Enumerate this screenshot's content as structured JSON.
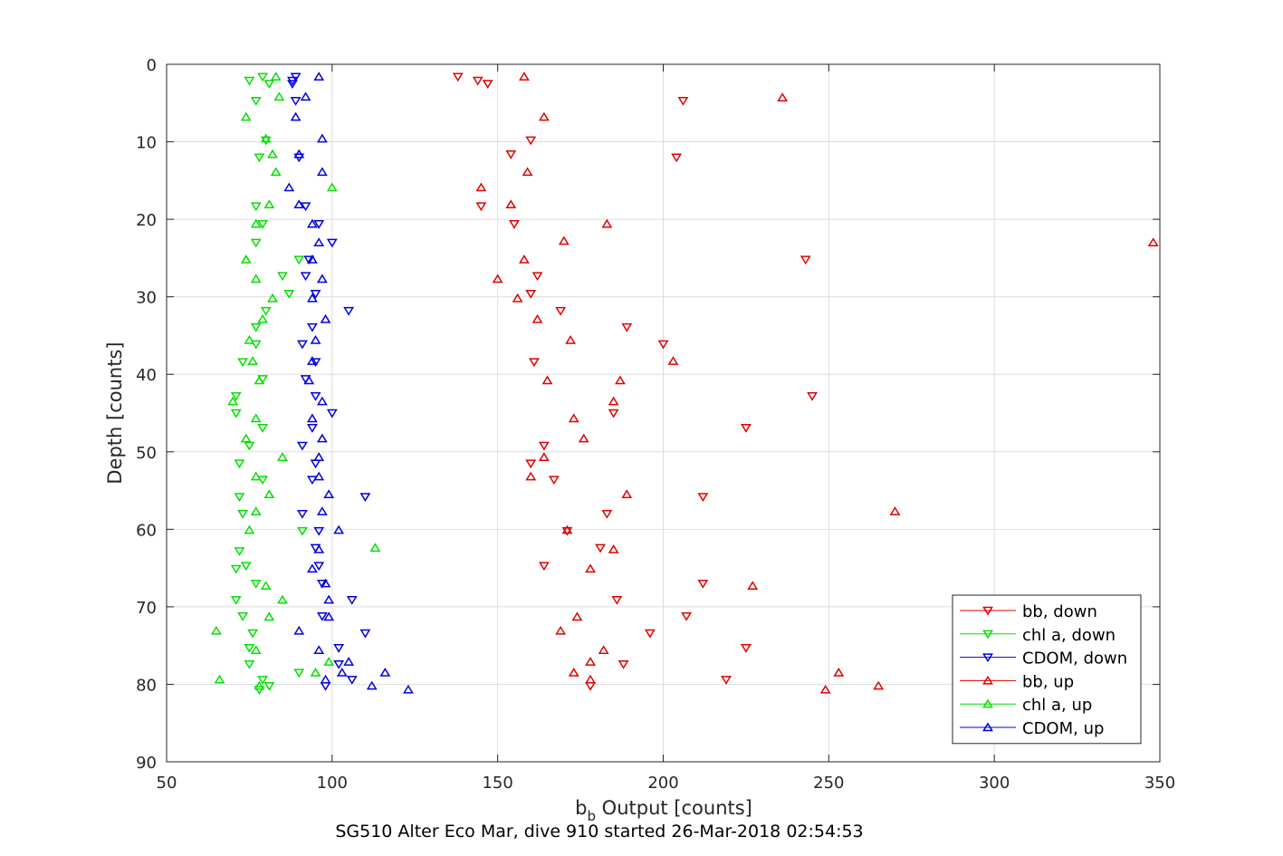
{
  "chart_data": {
    "type": "scatter",
    "title": "",
    "caption": "SG510 Alter Eco Mar, dive 910 started 26-Mar-2018 02:54:53",
    "xlabel_main": "b",
    "xlabel_sub": "b",
    "xlabel_rest": " Output [counts]",
    "ylabel": "Depth [counts]",
    "xlim": [
      50,
      350
    ],
    "ylim": [
      0,
      90
    ],
    "y_reversed": true,
    "grid": true,
    "legend_position": "bottom-right",
    "xticks": [
      "50",
      "100",
      "150",
      "200",
      "250",
      "300",
      "350"
    ],
    "yticks": [
      "0",
      "10",
      "20",
      "30",
      "40",
      "50",
      "60",
      "70",
      "80",
      "90"
    ],
    "series": [
      {
        "name": "bb, down",
        "color": "#e00000",
        "marker": "triangle-down",
        "points": [
          [
            138,
            1.6
          ],
          [
            144,
            2.1
          ],
          [
            147,
            2.5
          ],
          [
            206,
            4.7
          ],
          [
            160,
            9.8
          ],
          [
            204,
            12
          ],
          [
            154,
            11.6
          ],
          [
            145,
            18.3
          ],
          [
            155,
            20.6
          ],
          [
            243,
            25.2
          ],
          [
            162,
            27.3
          ],
          [
            160,
            29.6
          ],
          [
            169,
            31.8
          ],
          [
            189,
            33.9
          ],
          [
            200,
            36.1
          ],
          [
            161,
            38.4
          ],
          [
            245,
            42.8
          ],
          [
            185,
            45
          ],
          [
            225,
            46.9
          ],
          [
            164,
            49.2
          ],
          [
            160,
            51.5
          ],
          [
            167,
            53.6
          ],
          [
            212,
            55.8
          ],
          [
            183,
            58
          ],
          [
            171,
            60.2
          ],
          [
            181,
            62.4
          ],
          [
            164,
            64.7
          ],
          [
            212,
            67
          ],
          [
            186,
            69.1
          ],
          [
            207,
            71.2
          ],
          [
            196,
            73.4
          ],
          [
            225,
            75.3
          ],
          [
            188,
            77.4
          ],
          [
            219,
            79.4
          ],
          [
            178,
            80.2
          ]
        ]
      },
      {
        "name": "chl a, down",
        "color": "#00e000",
        "marker": "triangle-down",
        "points": [
          [
            79,
            1.6
          ],
          [
            75,
            2.1
          ],
          [
            81,
            2.5
          ],
          [
            77,
            4.7
          ],
          [
            80,
            9.8
          ],
          [
            78,
            12
          ],
          [
            77,
            18.3
          ],
          [
            79,
            20.6
          ],
          [
            77,
            23
          ],
          [
            90,
            25.2
          ],
          [
            85,
            27.3
          ],
          [
            87,
            29.6
          ],
          [
            80,
            31.8
          ],
          [
            77,
            33.9
          ],
          [
            77,
            36.1
          ],
          [
            73,
            38.4
          ],
          [
            79,
            40.6
          ],
          [
            71,
            42.8
          ],
          [
            71,
            45
          ],
          [
            79,
            46.9
          ],
          [
            75,
            49.2
          ],
          [
            72,
            51.5
          ],
          [
            79,
            53.6
          ],
          [
            72,
            55.8
          ],
          [
            73,
            58
          ],
          [
            91,
            60.2
          ],
          [
            72,
            62.8
          ],
          [
            74,
            64.7
          ],
          [
            71,
            65.1
          ],
          [
            77,
            67
          ],
          [
            71,
            69.1
          ],
          [
            73,
            71.2
          ],
          [
            76,
            73.4
          ],
          [
            75,
            75.3
          ],
          [
            75,
            77.4
          ],
          [
            90,
            78.5
          ],
          [
            79,
            79.4
          ],
          [
            81,
            80.2
          ],
          [
            78,
            80.7
          ]
        ]
      },
      {
        "name": "CDOM, down",
        "color": "#0000e0",
        "marker": "triangle-down",
        "points": [
          [
            89,
            1.6
          ],
          [
            88,
            2.1
          ],
          [
            88,
            2.5
          ],
          [
            89,
            4.7
          ],
          [
            90,
            12
          ],
          [
            92,
            18.3
          ],
          [
            96,
            20.6
          ],
          [
            100,
            23
          ],
          [
            93,
            25.2
          ],
          [
            92,
            27.3
          ],
          [
            95,
            29.6
          ],
          [
            105,
            31.8
          ],
          [
            94,
            33.9
          ],
          [
            91,
            36.1
          ],
          [
            95,
            38.4
          ],
          [
            92,
            40.6
          ],
          [
            95,
            42.8
          ],
          [
            100,
            45
          ],
          [
            94,
            46.9
          ],
          [
            91,
            49.2
          ],
          [
            95,
            51.5
          ],
          [
            94,
            53.6
          ],
          [
            110,
            55.8
          ],
          [
            91,
            58
          ],
          [
            96,
            60.2
          ],
          [
            95,
            62.4
          ],
          [
            96,
            64.7
          ],
          [
            97,
            67
          ],
          [
            106,
            69.1
          ],
          [
            97,
            71.2
          ],
          [
            110,
            73.4
          ],
          [
            102,
            75.3
          ],
          [
            102,
            77.4
          ],
          [
            106,
            79.4
          ],
          [
            98,
            80.2
          ]
        ]
      },
      {
        "name": "bb, up",
        "color": "#e00000",
        "marker": "triangle-up",
        "points": [
          [
            158,
            1.6
          ],
          [
            236,
            4.3
          ],
          [
            164,
            6.8
          ],
          [
            159,
            13.9
          ],
          [
            145,
            15.9
          ],
          [
            154,
            18.1
          ],
          [
            183,
            20.6
          ],
          [
            348,
            23
          ],
          [
            170,
            22.8
          ],
          [
            158,
            25.2
          ],
          [
            150,
            27.7
          ],
          [
            156,
            30.2
          ],
          [
            162,
            32.9
          ],
          [
            172,
            35.6
          ],
          [
            203,
            38.3
          ],
          [
            165,
            40.8
          ],
          [
            187,
            40.8
          ],
          [
            185,
            43.5
          ],
          [
            173,
            45.7
          ],
          [
            176,
            48.3
          ],
          [
            164,
            50.7
          ],
          [
            160,
            53.2
          ],
          [
            189,
            55.5
          ],
          [
            270,
            57.7
          ],
          [
            171,
            60.1
          ],
          [
            185,
            62.6
          ],
          [
            178,
            65.1
          ],
          [
            227,
            67.3
          ],
          [
            174,
            71.3
          ],
          [
            169,
            73.1
          ],
          [
            182,
            75.6
          ],
          [
            178,
            77.1
          ],
          [
            173,
            78.5
          ],
          [
            253,
            78.5
          ],
          [
            178,
            79.4
          ],
          [
            265,
            80.2
          ],
          [
            249,
            80.7
          ]
        ]
      },
      {
        "name": "chl a, up",
        "color": "#00e000",
        "marker": "triangle-up",
        "points": [
          [
            83,
            1.6
          ],
          [
            84,
            4.2
          ],
          [
            74,
            6.8
          ],
          [
            80,
            9.6
          ],
          [
            82,
            11.6
          ],
          [
            83,
            13.9
          ],
          [
            100,
            15.9
          ],
          [
            81,
            18.1
          ],
          [
            77,
            20.6
          ],
          [
            74,
            25.2
          ],
          [
            77,
            27.7
          ],
          [
            82,
            30.2
          ],
          [
            79,
            32.9
          ],
          [
            75,
            35.6
          ],
          [
            76,
            38.3
          ],
          [
            78,
            40.8
          ],
          [
            70,
            43.5
          ],
          [
            77,
            45.7
          ],
          [
            74,
            48.3
          ],
          [
            85,
            50.7
          ],
          [
            77,
            53.2
          ],
          [
            81,
            55.5
          ],
          [
            77,
            57.7
          ],
          [
            75,
            60.1
          ],
          [
            113,
            62.4
          ],
          [
            80,
            67.3
          ],
          [
            85,
            69.1
          ],
          [
            81,
            71.3
          ],
          [
            65,
            73.1
          ],
          [
            77,
            75.6
          ],
          [
            99,
            77.1
          ],
          [
            95,
            78.5
          ],
          [
            66,
            79.4
          ],
          [
            78,
            80.2
          ]
        ]
      },
      {
        "name": "CDOM, up",
        "color": "#0000e0",
        "marker": "triangle-up",
        "points": [
          [
            96,
            1.6
          ],
          [
            92,
            4.2
          ],
          [
            89,
            6.8
          ],
          [
            97,
            9.6
          ],
          [
            90,
            11.6
          ],
          [
            97,
            13.9
          ],
          [
            87,
            15.9
          ],
          [
            90,
            18.1
          ],
          [
            94,
            20.6
          ],
          [
            96,
            23
          ],
          [
            94,
            25.2
          ],
          [
            97,
            27.7
          ],
          [
            94,
            30.2
          ],
          [
            98,
            32.9
          ],
          [
            95,
            35.6
          ],
          [
            94,
            38.3
          ],
          [
            93,
            40.8
          ],
          [
            97,
            43.5
          ],
          [
            94,
            45.7
          ],
          [
            97,
            48.3
          ],
          [
            96,
            50.7
          ],
          [
            96,
            53.2
          ],
          [
            99,
            55.5
          ],
          [
            97,
            57.7
          ],
          [
            102,
            60.1
          ],
          [
            96,
            62.6
          ],
          [
            94,
            65.1
          ],
          [
            98,
            67
          ],
          [
            99,
            69.1
          ],
          [
            99,
            71.3
          ],
          [
            90,
            73.1
          ],
          [
            96,
            75.6
          ],
          [
            105,
            77.1
          ],
          [
            116,
            78.5
          ],
          [
            103,
            78.5
          ],
          [
            98,
            79.4
          ],
          [
            112,
            80.2
          ],
          [
            123,
            80.7
          ]
        ]
      }
    ]
  }
}
